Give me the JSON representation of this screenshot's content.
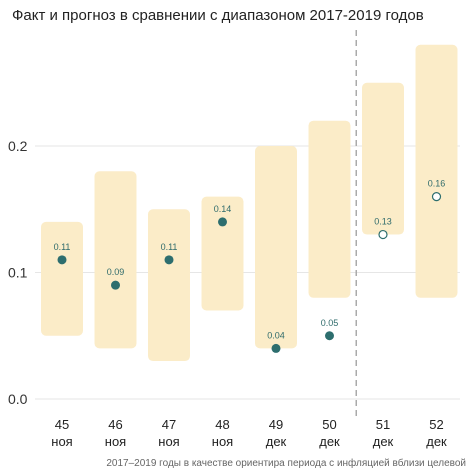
{
  "chart_data": {
    "type": "range-dot",
    "title": "Факт и прогноз в сравнении с диапазоном 2017-2019 годов",
    "caption": "2017–2019 годы в качестве ориентира периода с инфляцией вблизи целевой",
    "ylim": [
      0,
      0.28
    ],
    "yticks": [
      {
        "value": 0.0,
        "label": "0.0"
      },
      {
        "value": 0.1,
        "label": "0.1"
      },
      {
        "value": 0.2,
        "label": "0.2"
      }
    ],
    "grid": true,
    "divider_after_index": 5,
    "colors": {
      "range": "#fbecc8",
      "fact": "#2d6e6e",
      "forecast_fill": "#ffffff",
      "divider": "#aaaaaa",
      "grid": "#e6e6e6"
    },
    "points": [
      {
        "week": "45",
        "month": "ноя",
        "low": 0.05,
        "high": 0.14,
        "value": 0.11,
        "label": "0.11",
        "kind": "fact"
      },
      {
        "week": "46",
        "month": "ноя",
        "low": 0.04,
        "high": 0.18,
        "value": 0.09,
        "label": "0.09",
        "kind": "fact"
      },
      {
        "week": "47",
        "month": "ноя",
        "low": 0.03,
        "high": 0.15,
        "value": 0.11,
        "label": "0.11",
        "kind": "fact"
      },
      {
        "week": "48",
        "month": "ноя",
        "low": 0.07,
        "high": 0.16,
        "value": 0.14,
        "label": "0.14",
        "kind": "fact"
      },
      {
        "week": "49",
        "month": "дек",
        "low": 0.04,
        "high": 0.2,
        "value": 0.04,
        "label": "0.04",
        "kind": "fact"
      },
      {
        "week": "50",
        "month": "дек",
        "low": 0.08,
        "high": 0.22,
        "value": 0.05,
        "label": "0.05",
        "kind": "fact"
      },
      {
        "week": "51",
        "month": "дек",
        "low": 0.13,
        "high": 0.25,
        "value": 0.13,
        "label": "0.13",
        "kind": "forecast"
      },
      {
        "week": "52",
        "month": "дек",
        "low": 0.08,
        "high": 0.28,
        "value": 0.16,
        "label": "0.16",
        "kind": "forecast"
      }
    ]
  }
}
